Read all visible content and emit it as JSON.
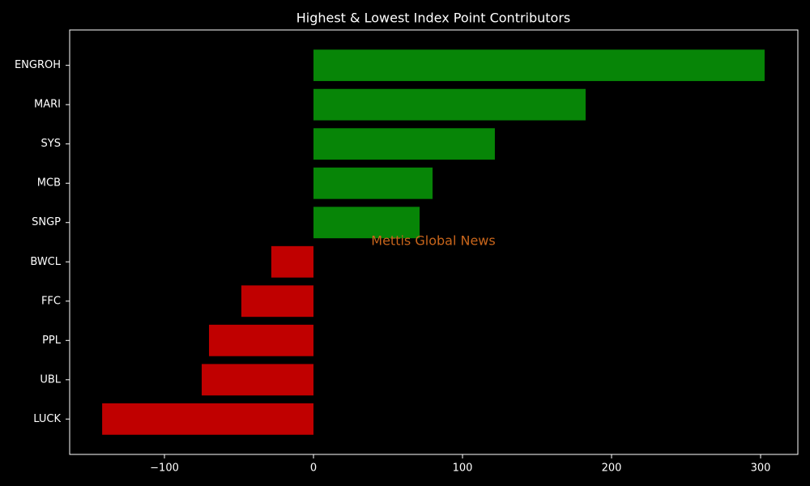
{
  "chart_data": {
    "type": "barh",
    "title": "Highest & Lowest Index Point Contributors",
    "annotation": "Mettis Global News",
    "annotation_color": "#c8651b",
    "categories": [
      "ENGROH",
      "MARI",
      "SYS",
      "MCB",
      "SNGP",
      "BWCL",
      "FFC",
      "PPL",
      "UBL",
      "LUCK"
    ],
    "values": [
      302.7,
      182.6,
      121.7,
      79.9,
      71.2,
      -28.3,
      -48.4,
      -70.1,
      -75.0,
      -141.8
    ],
    "colors": [
      "#078507",
      "#078507",
      "#078507",
      "#078507",
      "#078507",
      "#c00000",
      "#c00000",
      "#c00000",
      "#c00000",
      "#c00000"
    ],
    "xlim": [
      -163.6,
      325
    ],
    "xticks": [
      {
        "value": -100,
        "label": "−100"
      },
      0,
      100,
      200,
      300
    ],
    "grid": false
  }
}
